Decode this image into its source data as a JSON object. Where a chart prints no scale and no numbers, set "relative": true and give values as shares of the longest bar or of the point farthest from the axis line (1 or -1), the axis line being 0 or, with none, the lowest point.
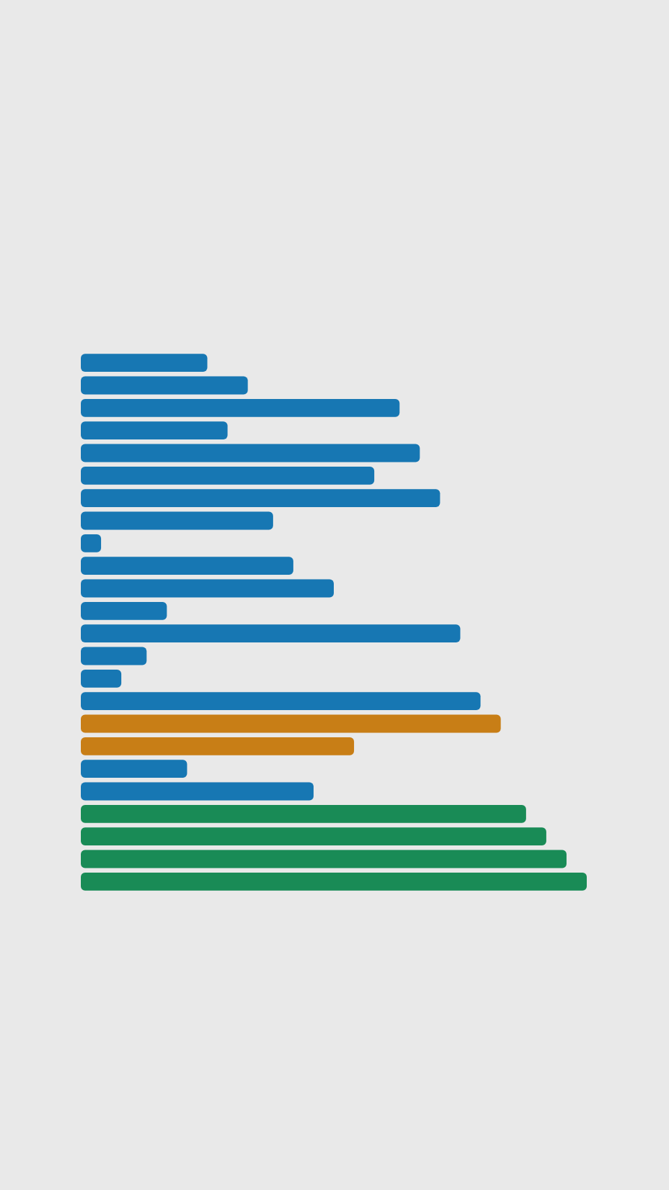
{
  "chart_data": {
    "type": "bar",
    "orientation": "horizontal",
    "relative": true,
    "categories": [
      null,
      null,
      null,
      null,
      null,
      null,
      null,
      null,
      null,
      null,
      null,
      null,
      null,
      null,
      null,
      null,
      null,
      null,
      null,
      null,
      null,
      null,
      null,
      null
    ],
    "values": [
      0.25,
      0.33,
      0.63,
      0.29,
      0.67,
      0.58,
      0.71,
      0.38,
      0.04,
      0.42,
      0.5,
      0.17,
      0.75,
      0.13,
      0.08,
      0.79,
      0.83,
      0.54,
      0.21,
      0.46,
      0.88,
      0.92,
      0.96,
      1
    ],
    "colors": [
      "#1777b3",
      "#1777b3",
      "#1777b3",
      "#1777b3",
      "#1777b3",
      "#1777b3",
      "#1777b3",
      "#1777b3",
      "#1777b3",
      "#1777b3",
      "#1777b3",
      "#1777b3",
      "#1777b3",
      "#1777b3",
      "#1777b3",
      "#1777b3",
      "#c87e16",
      "#c87e16",
      "#1777b3",
      "#1777b3",
      "#198b56",
      "#198b56",
      "#198b56",
      "#198b56"
    ]
  }
}
